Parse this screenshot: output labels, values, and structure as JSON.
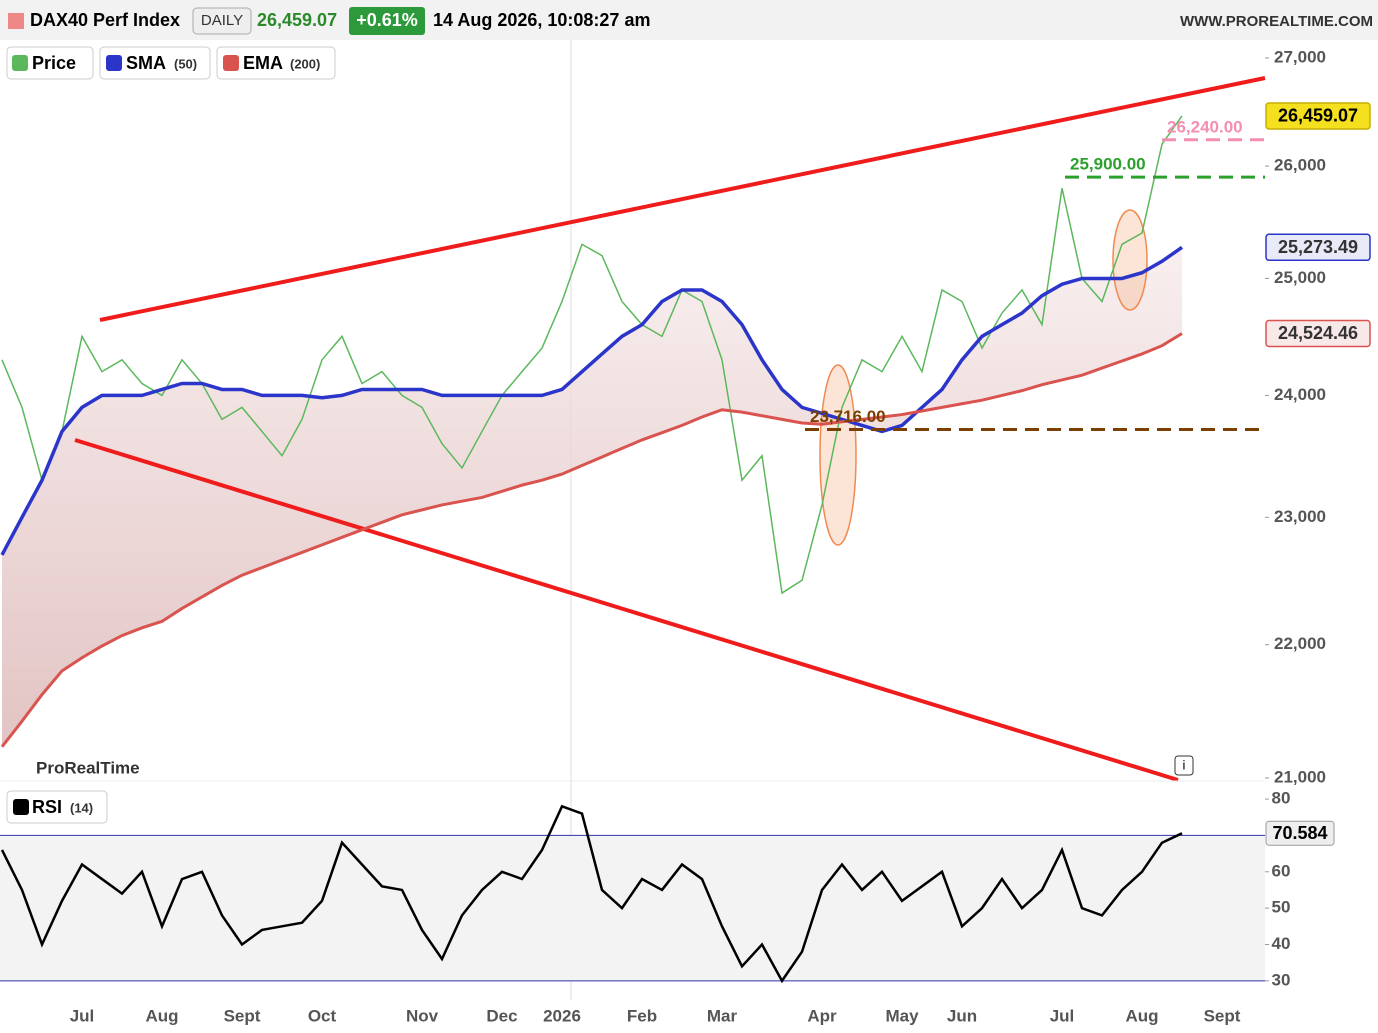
{
  "header": {
    "symbol": "DAX40 Perf Index",
    "period": "DAILY",
    "price": "26,459.07",
    "change": "+0.61%",
    "datetime": "14 Aug 2026, 10:08:27 am",
    "site": "WWW.PROREALTIME.COM",
    "brand": "ProRealTime"
  },
  "chart_data": [
    {
      "type": "line",
      "scale": "log",
      "categories": [
        null,
        null,
        null,
        null,
        "Jul",
        null,
        null,
        null,
        "Aug",
        null,
        null,
        null,
        "Sept",
        null,
        null,
        null,
        "Oct",
        null,
        null,
        null,
        null,
        "Nov",
        null,
        null,
        null,
        "Dec",
        null,
        null,
        "2026",
        null,
        null,
        null,
        "Feb",
        null,
        null,
        null,
        "Mar",
        null,
        null,
        null,
        null,
        "Apr",
        null,
        null,
        null,
        "May",
        null,
        null,
        "Jun",
        null,
        null,
        null,
        null,
        "Jul",
        null,
        null,
        null,
        "Aug",
        null,
        null,
        null,
        "Sept"
      ],
      "ylim": [
        20985,
        27170
      ],
      "yticks": [
        {
          "value": 27000,
          "label": "27,000"
        },
        {
          "value": 26000,
          "label": "26,000"
        },
        {
          "value": 25000,
          "label": "25,000"
        },
        {
          "value": 24000,
          "label": "24,000"
        },
        {
          "value": 23000,
          "label": "23,000"
        },
        {
          "value": 22000,
          "label": "22,000"
        },
        {
          "value": 21000,
          "label": "21,000"
        }
      ],
      "series": [
        {
          "name": "Price",
          "color": "#5cb85c",
          "last_label": "26,459.07",
          "box_color": "#f5e020",
          "values": [
            24300,
            23900,
            23300,
            23700,
            24500,
            24200,
            24300,
            24100,
            24000,
            24300,
            24100,
            23800,
            23900,
            23700,
            23500,
            23800,
            24300,
            24500,
            24100,
            24200,
            24000,
            23900,
            23600,
            23400,
            23700,
            24000,
            24200,
            24400,
            24800,
            25300,
            25200,
            24800,
            24600,
            24500,
            24900,
            24800,
            24300,
            23300,
            23500,
            22400,
            22500,
            23100,
            23900,
            24300,
            24200,
            24500,
            24200,
            24900,
            24800,
            24400,
            24700,
            24900,
            24600,
            25800,
            25000,
            24800,
            25300,
            25400,
            26200,
            26459.07,
            null,
            null
          ]
        },
        {
          "name": "SMA",
          "param": "(50)",
          "color": "#2b35c9",
          "last_label": "25,273.49",
          "values": [
            22700,
            23000,
            23300,
            23700,
            23900,
            24000,
            24000,
            24000,
            24050,
            24100,
            24100,
            24050,
            24050,
            24000,
            24000,
            24000,
            23980,
            24000,
            24050,
            24050,
            24050,
            24050,
            24000,
            24000,
            24000,
            24000,
            24000,
            24000,
            24050,
            24200,
            24350,
            24500,
            24600,
            24800,
            24900,
            24900,
            24800,
            24600,
            24300,
            24050,
            23900,
            23850,
            23800,
            23750,
            23700,
            23750,
            23900,
            24050,
            24300,
            24500,
            24600,
            24700,
            24850,
            24950,
            25000,
            25000,
            25000,
            25050,
            25150,
            25273.49,
            null,
            null
          ]
        },
        {
          "name": "EMA",
          "param": "(200)",
          "color": "#d9534f",
          "last_label": "24,524.46",
          "values": [
            21230,
            21420,
            21620,
            21800,
            21900,
            21990,
            22070,
            22130,
            22180,
            22280,
            22370,
            22460,
            22540,
            22600,
            22660,
            22720,
            22780,
            22840,
            22900,
            22960,
            23020,
            23060,
            23100,
            23130,
            23160,
            23210,
            23260,
            23300,
            23350,
            23420,
            23490,
            23560,
            23630,
            23690,
            23750,
            23820,
            23880,
            23860,
            23830,
            23800,
            23770,
            23760,
            23780,
            23800,
            23820,
            23840,
            23870,
            23900,
            23930,
            23960,
            24000,
            24040,
            24090,
            24130,
            24170,
            24230,
            24290,
            24350,
            24420,
            24524.46,
            null,
            null
          ]
        }
      ],
      "levels": [
        {
          "value": 25900,
          "label": "25,900.00",
          "color": "#2ca02c"
        },
        {
          "value": 26240,
          "label": "26,240.00",
          "color": "#f48fb1"
        },
        {
          "value": 23716,
          "label": "23,716.00",
          "color": "#7b3f00"
        }
      ]
    },
    {
      "type": "line",
      "name": "RSI",
      "param": "(14)",
      "ylim": [
        25,
        82.5
      ],
      "yticks": [
        80,
        60,
        50,
        40,
        30
      ],
      "levels": [
        70,
        30
      ],
      "series": [
        {
          "name": "RSI",
          "color": "#000000",
          "last_label": "70.584",
          "values": [
            66,
            55,
            40,
            52,
            62,
            58,
            54,
            60,
            45,
            58,
            60,
            48,
            40,
            44,
            45,
            46,
            52,
            68,
            62,
            56,
            55,
            44,
            36,
            48,
            55,
            60,
            58,
            66,
            78,
            76,
            55,
            50,
            58,
            55,
            62,
            58,
            45,
            34,
            40,
            30,
            38,
            55,
            62,
            55,
            60,
            52,
            56,
            60,
            45,
            50,
            58,
            50,
            55,
            66,
            50,
            48,
            55,
            60,
            68,
            70.584,
            null,
            null
          ]
        }
      ]
    }
  ]
}
